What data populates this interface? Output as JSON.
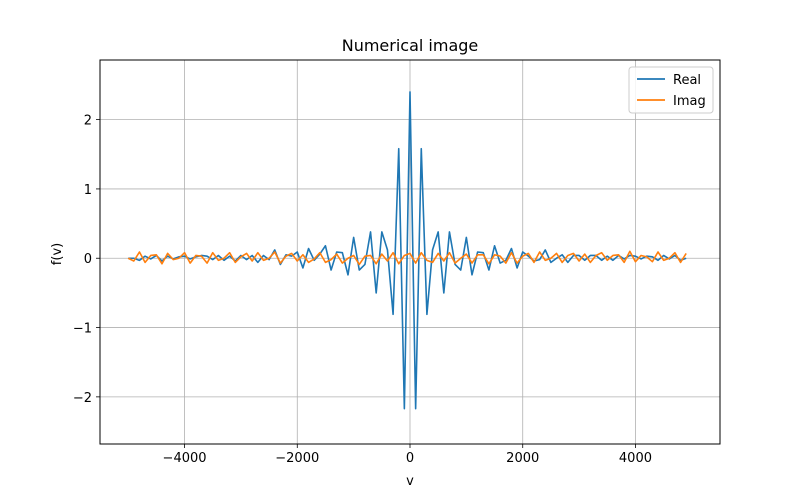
{
  "chart_data": {
    "type": "line",
    "title": "Numerical image",
    "xlabel": "v",
    "ylabel": "f(v)",
    "xlim": [
      -5500,
      5500
    ],
    "ylim": [
      -2.68,
      2.86
    ],
    "xticks": [
      -4000,
      -2000,
      0,
      2000,
      4000
    ],
    "xtick_labels": [
      "−4000",
      "−2000",
      "0",
      "2000",
      "4000"
    ],
    "yticks": [
      -2,
      -1,
      0,
      1,
      2
    ],
    "ytick_labels": [
      "−2",
      "−1",
      "0",
      "1",
      "2"
    ],
    "grid": true,
    "legend_position": "top-right",
    "x": [
      -5000,
      -4900,
      -4800,
      -4700,
      -4600,
      -4500,
      -4400,
      -4300,
      -4200,
      -4100,
      -4000,
      -3900,
      -3800,
      -3700,
      -3600,
      -3500,
      -3400,
      -3300,
      -3200,
      -3100,
      -3000,
      -2900,
      -2800,
      -2700,
      -2600,
      -2500,
      -2400,
      -2300,
      -2200,
      -2100,
      -2000,
      -1900,
      -1800,
      -1700,
      -1600,
      -1500,
      -1400,
      -1300,
      -1200,
      -1100,
      -1000,
      -900,
      -800,
      -700,
      -600,
      -500,
      -400,
      -300,
      -200,
      -100,
      0,
      100,
      200,
      300,
      400,
      500,
      600,
      700,
      800,
      900,
      1000,
      1100,
      1200,
      1300,
      1400,
      1500,
      1600,
      1700,
      1800,
      1900,
      2000,
      2100,
      2200,
      2300,
      2400,
      2500,
      2600,
      2700,
      2800,
      2900,
      3000,
      3100,
      3200,
      3300,
      3400,
      3500,
      3600,
      3700,
      3800,
      3900,
      4000,
      4100,
      4200,
      4300,
      4400,
      4500,
      4600,
      4700,
      4800,
      4900
    ],
    "series": [
      {
        "name": "Real",
        "color": "#1f77b4",
        "values": [
          0.0,
          0.0,
          -0.03,
          0.03,
          -0.01,
          0.04,
          -0.04,
          0.03,
          -0.01,
          0.02,
          0.03,
          -0.01,
          0.02,
          0.04,
          0.03,
          -0.02,
          0.04,
          -0.03,
          0.03,
          -0.04,
          0.04,
          -0.02,
          0.04,
          -0.06,
          0.04,
          -0.02,
          0.12,
          -0.09,
          0.05,
          0.03,
          0.09,
          -0.14,
          0.14,
          -0.03,
          0.06,
          0.18,
          -0.17,
          0.09,
          0.08,
          -0.24,
          0.3,
          -0.17,
          -0.09,
          0.38,
          -0.5,
          0.38,
          0.12,
          -0.81,
          1.58,
          -2.17,
          2.4,
          -2.17,
          1.58,
          -0.81,
          0.12,
          0.38,
          -0.5,
          0.38,
          -0.09,
          -0.17,
          0.3,
          -0.24,
          0.09,
          0.08,
          -0.17,
          0.18,
          -0.07,
          -0.03,
          0.14,
          -0.14,
          0.09,
          0.03,
          -0.04,
          -0.02,
          0.12,
          -0.06,
          0.0,
          0.05,
          -0.06,
          0.04,
          0.04,
          -0.03,
          0.04,
          0.04,
          -0.03,
          0.03,
          -0.03,
          0.04,
          -0.01,
          0.04,
          0.03,
          -0.01,
          0.03,
          0.02,
          -0.03,
          0.04,
          -0.01,
          0.04,
          -0.03,
          0.0
        ]
      },
      {
        "name": "Imag",
        "color": "#ff7f0e",
        "values": [
          0.0,
          -0.04,
          0.09,
          -0.06,
          0.04,
          0.05,
          -0.08,
          0.07,
          -0.02,
          0.0,
          0.08,
          -0.07,
          0.04,
          0.03,
          -0.07,
          0.08,
          -0.03,
          0.0,
          0.08,
          -0.06,
          0.02,
          0.07,
          -0.04,
          0.08,
          -0.03,
          0.0,
          0.09,
          -0.07,
          0.03,
          0.07,
          -0.04,
          0.05,
          -0.06,
          -0.01,
          0.08,
          -0.06,
          -0.02,
          0.06,
          -0.07,
          0.0,
          0.04,
          -0.09,
          0.03,
          0.04,
          -0.08,
          0.06,
          -0.04,
          0.08,
          -0.08,
          0.04,
          0.07,
          -0.07,
          0.08,
          -0.03,
          -0.06,
          0.07,
          -0.04,
          0.08,
          -0.07,
          0.0,
          0.06,
          -0.07,
          0.05,
          0.05,
          -0.08,
          0.05,
          0.03,
          -0.07,
          0.08,
          -0.07,
          0.03,
          0.07,
          -0.06,
          0.09,
          -0.03,
          0.0,
          0.07,
          -0.06,
          0.04,
          0.07,
          -0.04,
          0.06,
          -0.06,
          0.04,
          0.08,
          -0.03,
          0.04,
          0.05,
          -0.06,
          0.1,
          -0.05,
          0.04,
          0.02,
          -0.05,
          0.09,
          -0.03,
          0.0,
          0.08,
          -0.06,
          0.07
        ]
      }
    ]
  }
}
